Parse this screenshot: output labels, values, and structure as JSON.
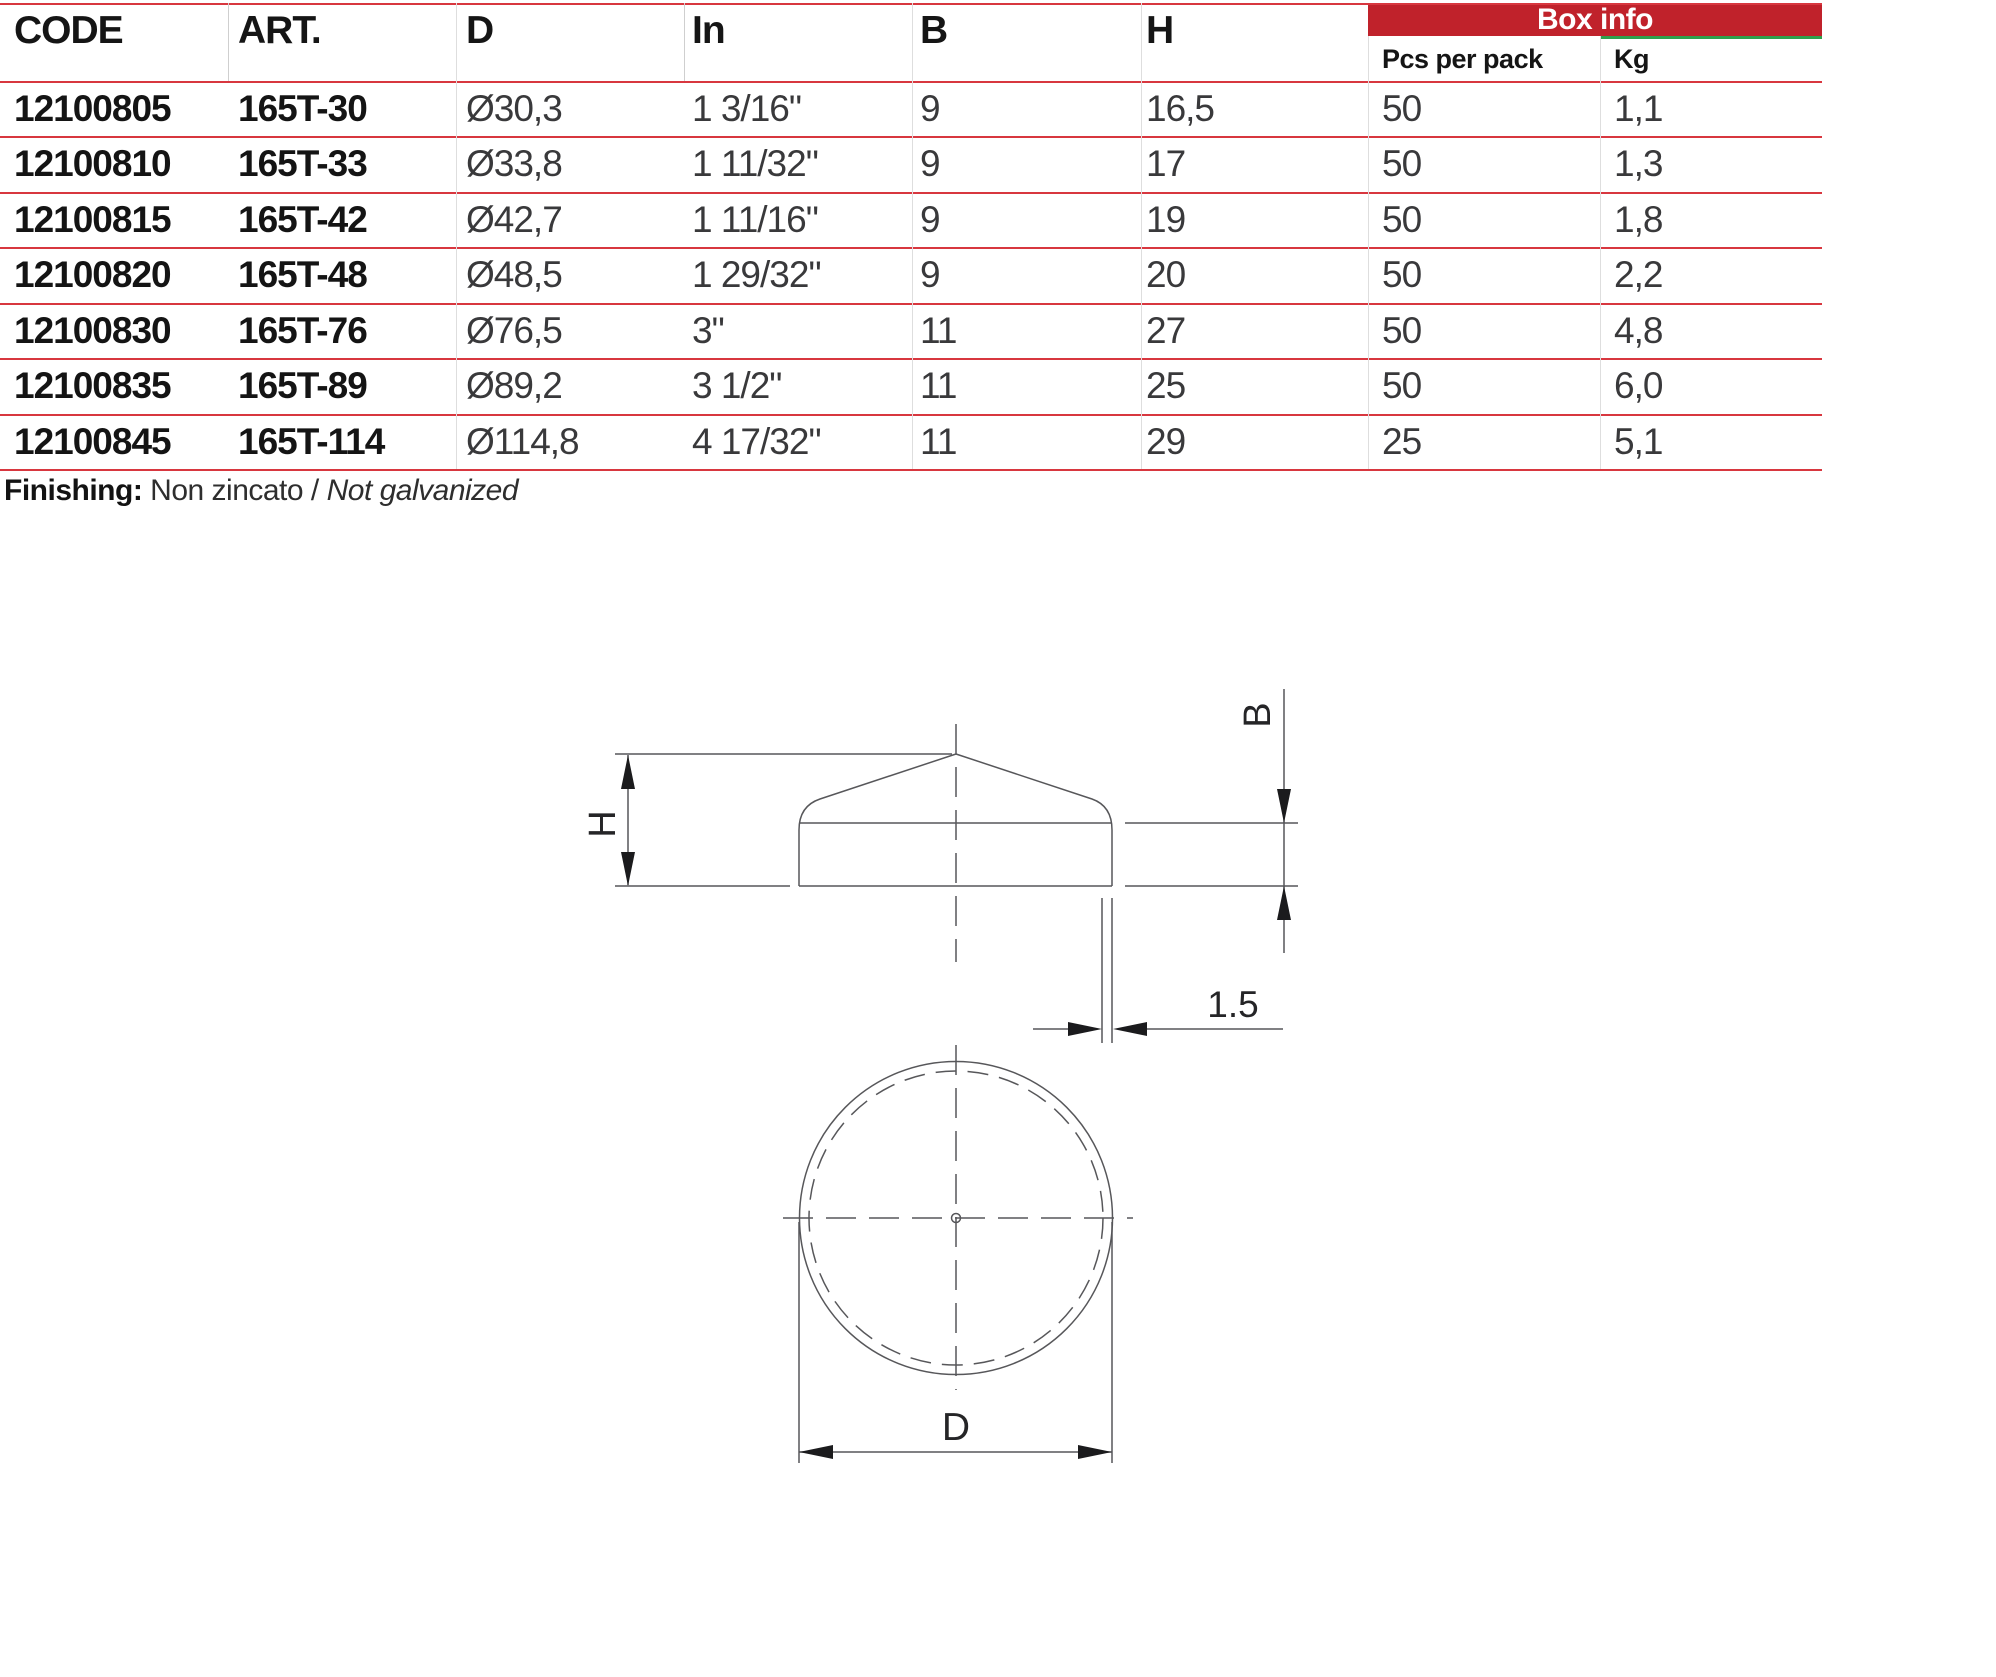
{
  "table": {
    "headers": {
      "code": "CODE",
      "art": "ART.",
      "d": "D",
      "in": "In",
      "b": "B",
      "h": "H"
    },
    "box": {
      "title": "Box info",
      "pcs": "Pcs per pack",
      "kg": "Kg"
    },
    "rows": [
      {
        "code": "12100805",
        "art": "165T-30",
        "d": "Ø30,3",
        "in": "1 3/16\"",
        "b": "9",
        "h": "16,5",
        "pcs": "50",
        "kg": "1,1"
      },
      {
        "code": "12100810",
        "art": "165T-33",
        "d": "Ø33,8",
        "in": "1 11/32\"",
        "b": "9",
        "h": "17",
        "pcs": "50",
        "kg": "1,3"
      },
      {
        "code": "12100815",
        "art": "165T-42",
        "d": "Ø42,7",
        "in": "1 11/16\"",
        "b": "9",
        "h": "19",
        "pcs": "50",
        "kg": "1,8"
      },
      {
        "code": "12100820",
        "art": "165T-48",
        "d": "Ø48,5",
        "in": "1 29/32\"",
        "b": "9",
        "h": "20",
        "pcs": "50",
        "kg": "2,2"
      },
      {
        "code": "12100830",
        "art": "165T-76",
        "d": "Ø76,5",
        "in": "3\"",
        "b": "11",
        "h": "27",
        "pcs": "50",
        "kg": "4,8"
      },
      {
        "code": "12100835",
        "art": "165T-89",
        "d": "Ø89,2",
        "in": "3 1/2\"",
        "b": "11",
        "h": "25",
        "pcs": "50",
        "kg": "6,0"
      },
      {
        "code": "12100845",
        "art": "165T-114",
        "d": "Ø114,8",
        "in": "4 17/32\"",
        "b": "11",
        "h": "29",
        "pcs": "25",
        "kg": "5,1"
      }
    ],
    "finishing": {
      "label": "Finishing:",
      "text": "Non zincato / ",
      "italic": "Not galvanized"
    }
  },
  "drawing": {
    "labels": {
      "h": "H",
      "b": "B",
      "d": "D",
      "thickness": "1.5"
    }
  },
  "colors": {
    "banner_red": "#c0222b",
    "line_red": "#d8373f",
    "green_accent": "#2fa04c",
    "stroke_gray": "#57575a"
  }
}
